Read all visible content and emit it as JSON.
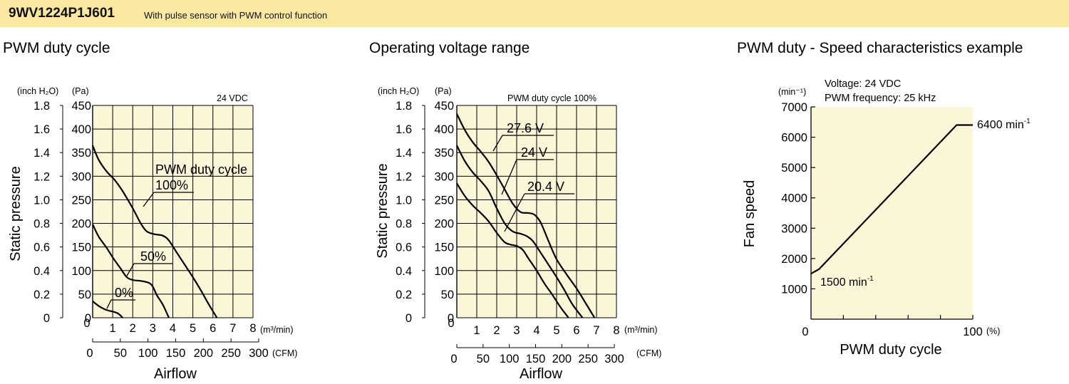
{
  "header": {
    "model": "9WV1224P1J601",
    "description": "With pulse sensor with PWM control function",
    "background": "#fbe9a2"
  },
  "colors": {
    "plot_bg": "#fcf6d9",
    "line": "#000000",
    "grid": "#000000"
  },
  "chart_data": [
    {
      "id": "chart1",
      "type": "line",
      "title": "PWM duty cycle",
      "xlabel": "Airflow",
      "ylabel": "Static pressure",
      "x_unit": "(m³/min)",
      "x2_unit": "(CFM)",
      "y_unit_inch": "(inch H₂O)",
      "y_unit_pa": "(Pa)",
      "xlim": [
        0,
        8
      ],
      "ylim": [
        0,
        450
      ],
      "x_ticks": [
        1,
        2,
        3,
        4,
        5,
        6,
        7,
        8
      ],
      "y_ticks": [
        0,
        50,
        100,
        150,
        200,
        250,
        300,
        350,
        400,
        450
      ],
      "y_inch_ticks": [
        "0",
        "0.2",
        "0.4",
        "0.6",
        "0.8",
        "1.0",
        "1.2",
        "1.4",
        "1.6",
        "1.8"
      ],
      "x_cfm_ticks": [
        "0",
        "50",
        "100",
        "150",
        "200",
        "250",
        "300"
      ],
      "condition": "24 VDC",
      "series": [
        {
          "name": "100%",
          "points": [
            [
              0,
              365
            ],
            [
              0.3,
              335
            ],
            [
              0.7,
              310
            ],
            [
              1.1,
              292
            ],
            [
              1.5,
              268
            ],
            [
              2.0,
              232
            ],
            [
              2.4,
              200
            ],
            [
              2.7,
              183
            ],
            [
              3.1,
              177
            ],
            [
              3.5,
              174
            ],
            [
              3.8,
              164
            ],
            [
              4.2,
              138
            ],
            [
              4.6,
              112
            ],
            [
              5.0,
              86
            ],
            [
              5.4,
              58
            ],
            [
              5.8,
              28
            ],
            [
              6.2,
              0
            ]
          ]
        },
        {
          "name": "50%",
          "points": [
            [
              0,
              198
            ],
            [
              0.3,
              172
            ],
            [
              0.7,
              148
            ],
            [
              1.0,
              128
            ],
            [
              1.4,
              104
            ],
            [
              1.7,
              86
            ],
            [
              2.0,
              80
            ],
            [
              2.4,
              78
            ],
            [
              2.8,
              74
            ],
            [
              3.0,
              66
            ],
            [
              3.2,
              48
            ],
            [
              3.5,
              28
            ],
            [
              3.8,
              0
            ]
          ]
        },
        {
          "name": "0%",
          "points": [
            [
              0,
              35
            ],
            [
              0.3,
              25
            ],
            [
              0.6,
              18
            ],
            [
              0.9,
              14
            ],
            [
              1.1,
              12
            ],
            [
              1.3,
              8
            ],
            [
              1.5,
              0
            ]
          ]
        }
      ],
      "annotations": [
        {
          "lines": [
            "PWM duty cycle",
            "100%"
          ]
        },
        {
          "lines": [
            "50%"
          ]
        },
        {
          "lines": [
            "0%"
          ]
        }
      ]
    },
    {
      "id": "chart2",
      "type": "line",
      "title": "Operating voltage range",
      "xlabel": "Airflow",
      "ylabel": "Static pressure",
      "x_unit": "(m³/min)",
      "x2_unit": "(CFM)",
      "y_unit_inch": "(inch H₂O)",
      "y_unit_pa": "(Pa)",
      "xlim": [
        0,
        8
      ],
      "ylim": [
        0,
        450
      ],
      "x_ticks": [
        1,
        2,
        3,
        4,
        5,
        6,
        7,
        8
      ],
      "y_ticks": [
        0,
        50,
        100,
        150,
        200,
        250,
        300,
        350,
        400,
        450
      ],
      "y_inch_ticks": [
        "0",
        "0.2",
        "0.4",
        "0.6",
        "0.8",
        "1.0",
        "1.2",
        "1.4",
        "1.6",
        "1.8"
      ],
      "x_cfm_ticks": [
        "0",
        "50",
        "100",
        "150",
        "200",
        "250",
        "300"
      ],
      "condition": "PWM duty cycle 100%",
      "series": [
        {
          "name": "27.6 V",
          "points": [
            [
              0,
              432
            ],
            [
              0.4,
              398
            ],
            [
              0.8,
              372
            ],
            [
              1.2,
              352
            ],
            [
              1.6,
              330
            ],
            [
              2.0,
              302
            ],
            [
              2.4,
              272
            ],
            [
              2.8,
              242
            ],
            [
              3.2,
              224
            ],
            [
              3.6,
              222
            ],
            [
              3.9,
              218
            ],
            [
              4.2,
              202
            ],
            [
              4.6,
              162
            ],
            [
              5.0,
              124
            ],
            [
              5.5,
              92
            ],
            [
              6.0,
              62
            ],
            [
              6.5,
              28
            ],
            [
              6.9,
              0
            ]
          ]
        },
        {
          "name": "24 V",
          "points": [
            [
              0,
              365
            ],
            [
              0.4,
              332
            ],
            [
              0.8,
              308
            ],
            [
              1.2,
              290
            ],
            [
              1.6,
              268
            ],
            [
              2.0,
              232
            ],
            [
              2.4,
              200
            ],
            [
              2.8,
              183
            ],
            [
              3.2,
              178
            ],
            [
              3.5,
              173
            ],
            [
              3.8,
              163
            ],
            [
              4.2,
              138
            ],
            [
              4.6,
              112
            ],
            [
              5.0,
              86
            ],
            [
              5.4,
              58
            ],
            [
              5.8,
              28
            ],
            [
              6.3,
              0
            ]
          ]
        },
        {
          "name": "20.4 V",
          "points": [
            [
              0,
              285
            ],
            [
              0.4,
              258
            ],
            [
              0.8,
              238
            ],
            [
              1.2,
              222
            ],
            [
              1.6,
              204
            ],
            [
              2.0,
              180
            ],
            [
              2.4,
              160
            ],
            [
              2.7,
              155
            ],
            [
              3.0,
              152
            ],
            [
              3.3,
              144
            ],
            [
              3.6,
              125
            ],
            [
              4.0,
              100
            ],
            [
              4.4,
              72
            ],
            [
              4.8,
              48
            ],
            [
              5.2,
              22
            ],
            [
              5.6,
              0
            ]
          ]
        }
      ],
      "annotations": [
        {
          "lines": [
            "27.6 V"
          ]
        },
        {
          "lines": [
            "24 V"
          ]
        },
        {
          "lines": [
            "20.4 V"
          ]
        }
      ]
    },
    {
      "id": "chart3",
      "type": "line",
      "title": "PWM duty - Speed characteristics example",
      "xlabel": "PWM duty cycle",
      "ylabel": "Fan speed",
      "x_unit": "(%)",
      "y_unit": "(min⁻¹)",
      "xlim": [
        0,
        100
      ],
      "ylim": [
        0,
        7000
      ],
      "x_tick_labels": [
        "0",
        "100"
      ],
      "y_ticks": [
        1000,
        2000,
        3000,
        4000,
        5000,
        6000,
        7000
      ],
      "conditions": [
        "Voltage: 24 VDC",
        "PWM frequency: 25 kHz"
      ],
      "series": [
        {
          "name": "speed",
          "points": [
            [
              0,
              1500
            ],
            [
              5,
              1650
            ],
            [
              90,
              6400
            ],
            [
              100,
              6400
            ]
          ]
        }
      ],
      "annotations": [
        {
          "text": "6400 min",
          "sup": "-1"
        },
        {
          "text": "1500 min",
          "sup": "-1"
        }
      ]
    }
  ]
}
